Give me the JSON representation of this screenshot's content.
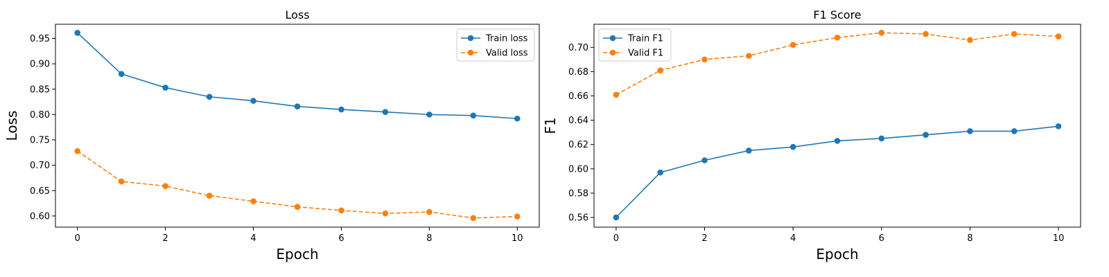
{
  "chart_data": [
    {
      "type": "line",
      "title": "Loss",
      "xlabel": "Epoch",
      "ylabel": "Loss",
      "x": [
        0,
        1,
        2,
        3,
        4,
        5,
        6,
        7,
        8,
        9,
        10
      ],
      "xticks": [
        0,
        2,
        4,
        6,
        8,
        10
      ],
      "xlim": [
        -0.5,
        10.5
      ],
      "yticks": [
        0.6,
        0.65,
        0.7,
        0.75,
        0.8,
        0.85,
        0.9,
        0.95
      ],
      "ylim": [
        0.578,
        0.978
      ],
      "legend": "top-right",
      "grid": false,
      "series": [
        {
          "name": "Train loss",
          "color": "#1f77b4",
          "dash": "solid",
          "values": [
            0.961,
            0.88,
            0.853,
            0.835,
            0.827,
            0.816,
            0.81,
            0.805,
            0.8,
            0.798,
            0.792
          ]
        },
        {
          "name": "Valid loss",
          "color": "#ff7f0e",
          "dash": "dashed",
          "values": [
            0.728,
            0.668,
            0.659,
            0.64,
            0.629,
            0.618,
            0.611,
            0.605,
            0.608,
            0.596,
            0.599
          ]
        }
      ]
    },
    {
      "type": "line",
      "title": "F1 Score",
      "xlabel": "Epoch",
      "ylabel": "F1",
      "x": [
        0,
        1,
        2,
        3,
        4,
        5,
        6,
        7,
        8,
        9,
        10
      ],
      "xticks": [
        0,
        2,
        4,
        6,
        8,
        10
      ],
      "xlim": [
        -0.5,
        10.5
      ],
      "yticks": [
        0.56,
        0.58,
        0.6,
        0.62,
        0.64,
        0.66,
        0.68,
        0.7
      ],
      "ylim": [
        0.552,
        0.719
      ],
      "legend": "top-left",
      "grid": false,
      "series": [
        {
          "name": "Train F1",
          "color": "#1f77b4",
          "dash": "solid",
          "values": [
            0.56,
            0.597,
            0.607,
            0.615,
            0.618,
            0.623,
            0.625,
            0.628,
            0.631,
            0.631,
            0.635
          ]
        },
        {
          "name": "Valid F1",
          "color": "#ff7f0e",
          "dash": "dashed",
          "values": [
            0.661,
            0.681,
            0.69,
            0.693,
            0.702,
            0.708,
            0.712,
            0.711,
            0.706,
            0.711,
            0.709
          ]
        }
      ]
    }
  ]
}
